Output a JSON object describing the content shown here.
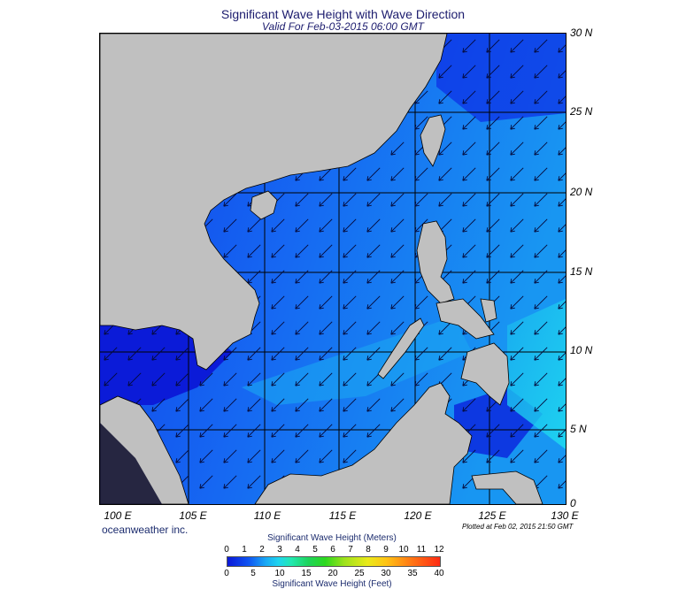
{
  "header": {
    "title": "Significant Wave Height with Wave Direction",
    "subtitle": "Valid For Feb-03-2015 06:00 GMT"
  },
  "map": {
    "lat_labels": [
      "30 N",
      "25 N",
      "20 N",
      "15 N",
      "10 N",
      "5 N",
      "0"
    ],
    "lon_labels": [
      "100 E",
      "105 E",
      "110 E",
      "115 E",
      "120 E",
      "125 E",
      "130 E"
    ],
    "lat_range": [
      0,
      30
    ],
    "lon_range": [
      99,
      130
    ],
    "wave_direction": "from northeast (arrows pointing southwest)",
    "colors": {
      "land": "#c0c0c0",
      "sea_low": "#0a0fd0",
      "sea_mid": "#1560f2",
      "sea_high": "#18c0f0"
    }
  },
  "footer": {
    "credit": "oceanweather inc.",
    "plotted": "Plotted at Feb 02, 2015 21:50 GMT"
  },
  "scale": {
    "meters_title": "Significant Wave Height (Meters)",
    "meters_ticks": [
      "0",
      "1",
      "2",
      "3",
      "4",
      "5",
      "6",
      "7",
      "8",
      "9",
      "10",
      "11",
      "12"
    ],
    "feet_title": "Significant Wave Height (Feet)",
    "feet_ticks": [
      "0",
      "5",
      "10",
      "15",
      "20",
      "25",
      "30",
      "35",
      "40"
    ]
  }
}
